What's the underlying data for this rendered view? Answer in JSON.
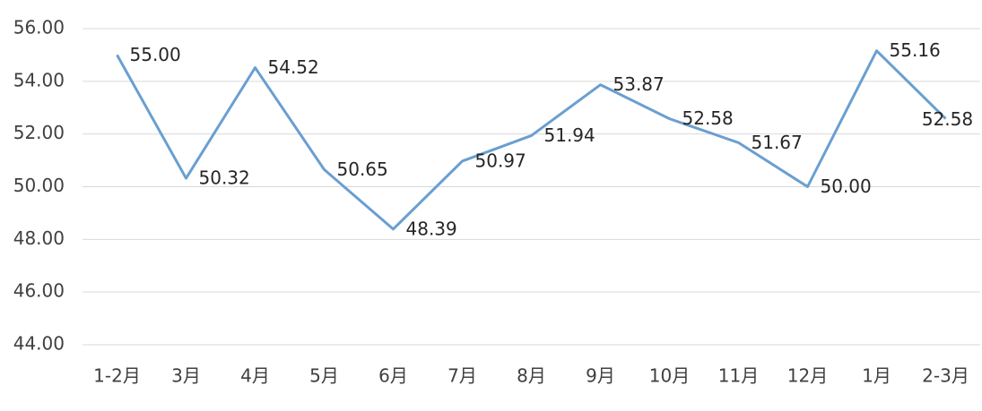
{
  "chart_data": {
    "type": "line",
    "categories": [
      "1-2月",
      "3月",
      "4月",
      "5月",
      "6月",
      "7月",
      "8月",
      "9月",
      "10月",
      "11月",
      "12月",
      "1月",
      "2-3月"
    ],
    "values": [
      55.0,
      50.32,
      54.52,
      50.65,
      48.39,
      50.97,
      51.94,
      53.87,
      52.58,
      51.67,
      50.0,
      55.16,
      52.58
    ],
    "value_labels": [
      "55.00",
      "50.32",
      "54.52",
      "50.65",
      "48.39",
      "50.97",
      "51.94",
      "53.87",
      "52.58",
      "51.67",
      "50.00",
      "55.16",
      "52.58"
    ],
    "color": "#6a9fd0",
    "ylim": [
      44,
      56
    ],
    "yticks": [
      {
        "value": 44,
        "label": "44.00"
      },
      {
        "value": 46,
        "label": "46.00"
      },
      {
        "value": 48,
        "label": "48.00"
      },
      {
        "value": 50,
        "label": "50.00"
      },
      {
        "value": 52,
        "label": "52.00"
      },
      {
        "value": 54,
        "label": "54.00"
      },
      {
        "value": 56,
        "label": "56.00"
      }
    ],
    "grid": true
  }
}
